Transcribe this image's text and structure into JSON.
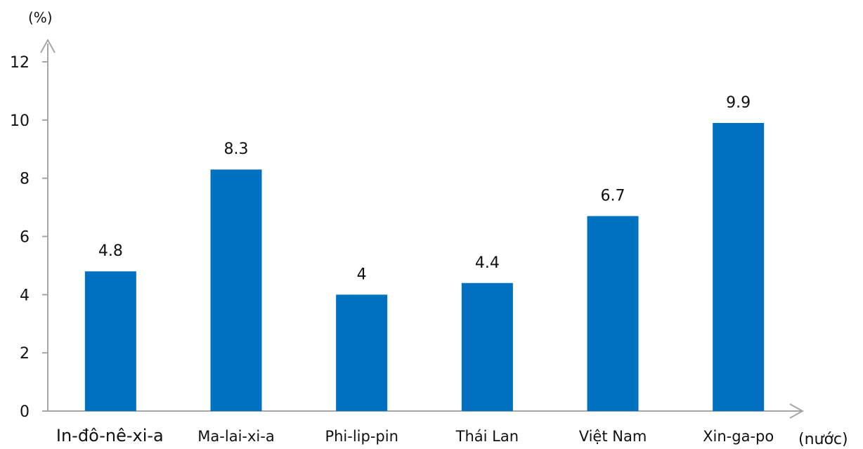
{
  "chart_data": {
    "type": "bar",
    "title": "",
    "categories": [
      "In-đô-nê-xi-a",
      "Ma-lai-xi-a",
      "Phi-lip-pin",
      "Thái Lan",
      "Việt Nam",
      "Xin-ga-po"
    ],
    "values": [
      4.8,
      8.3,
      4,
      4.4,
      6.7,
      9.9
    ],
    "value_labels": [
      "4.8",
      "8.3",
      "4",
      "4.4",
      "6.7",
      "9.9"
    ],
    "ylabel": "(%)",
    "xlabel": "(nước)",
    "ylim": [
      0,
      12
    ],
    "yticks": [
      0,
      2,
      4,
      6,
      8,
      10,
      12
    ],
    "ytick_labels": [
      "0",
      "2",
      "4",
      "6",
      "8",
      "10",
      "12"
    ],
    "bar_color": "#0070C0",
    "axis_color": "#A6A6A6",
    "grid": false,
    "legend": "none"
  }
}
